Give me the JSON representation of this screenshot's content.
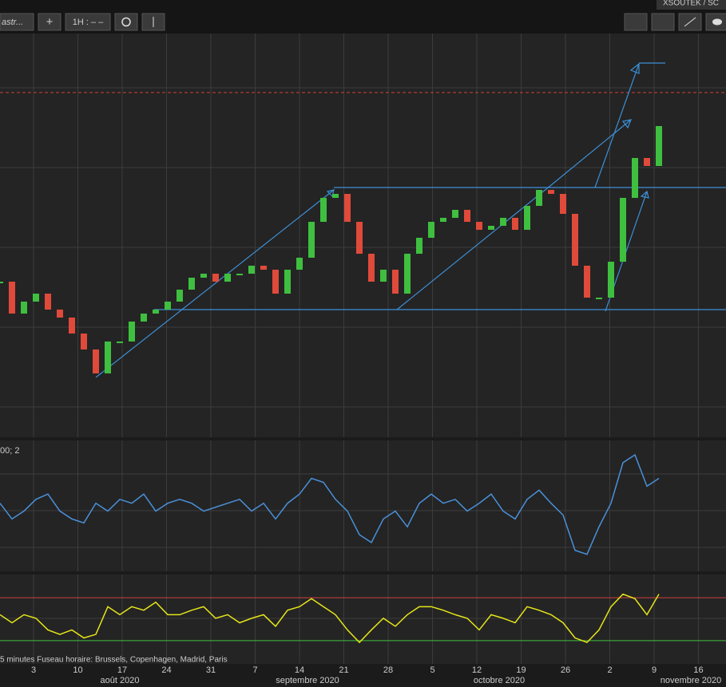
{
  "toolbar": {
    "search": "astr...",
    "add": "+",
    "interval": "1H : – –",
    "symbol": "XSOUTEK / SC"
  },
  "oscillator_label": "00; 2",
  "footer_note": "5 minutes    Fuseau horaire: Brussels, Copenhagen, Madrid, Paris",
  "x_labels": [
    "3",
    "10",
    "17",
    "24",
    "31",
    "7",
    "14",
    "21",
    "28",
    "5",
    "12",
    "19",
    "26",
    "2",
    "9",
    "16"
  ],
  "months": [
    "août 2020",
    "septembre 2020",
    "octobre 2020",
    "novembre 2020"
  ],
  "chart_data": [
    {
      "type": "candle",
      "ylim": [
        0,
        100
      ],
      "values": [
        39,
        31,
        34,
        36,
        32,
        30,
        26,
        22,
        16,
        24,
        24,
        29,
        31,
        32,
        34,
        37,
        40,
        41,
        39,
        41,
        41,
        43,
        42,
        36,
        42,
        45,
        54,
        60,
        61,
        54,
        46,
        39,
        42,
        36,
        46,
        50,
        54,
        55,
        57,
        54,
        52,
        53,
        55,
        52,
        58,
        62,
        61,
        56,
        43,
        35,
        35,
        44,
        60,
        70,
        68,
        78
      ]
    },
    {
      "type": "line",
      "ylim": [
        0,
        100
      ],
      "color": "#4a90d9",
      "values": [
        52,
        40,
        46,
        55,
        59,
        46,
        40,
        37,
        52,
        46,
        55,
        52,
        59,
        46,
        52,
        55,
        52,
        46,
        49,
        52,
        55,
        46,
        52,
        40,
        52,
        59,
        71,
        68,
        55,
        46,
        28,
        22,
        40,
        46,
        34,
        52,
        59,
        52,
        55,
        46,
        52,
        59,
        46,
        40,
        55,
        62,
        52,
        43,
        16,
        13,
        34,
        52,
        83,
        89,
        65,
        71
      ]
    },
    {
      "type": "line",
      "ylim": [
        0,
        100
      ],
      "color": "#e5e51a",
      "upper_level": 74,
      "lower_level": 26,
      "values": [
        55,
        46,
        55,
        51,
        38,
        33,
        38,
        29,
        33,
        64,
        55,
        64,
        60,
        69,
        55,
        55,
        60,
        64,
        51,
        55,
        46,
        51,
        55,
        42,
        60,
        64,
        73,
        64,
        55,
        38,
        24,
        38,
        51,
        42,
        55,
        64,
        64,
        60,
        55,
        51,
        38,
        55,
        51,
        46,
        64,
        60,
        55,
        46,
        29,
        24,
        38,
        64,
        78,
        73,
        55,
        78
      ]
    }
  ]
}
